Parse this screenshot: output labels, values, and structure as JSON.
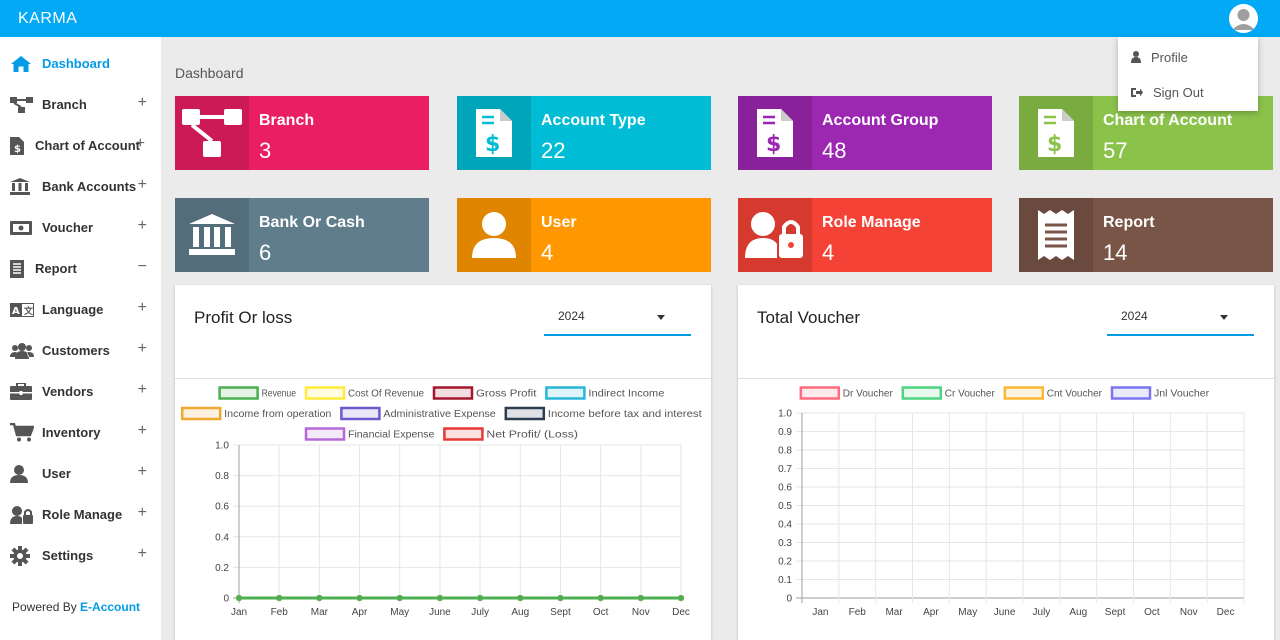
{
  "app": {
    "title": "KARMA"
  },
  "profile_menu": {
    "profile": "Profile",
    "sign_out": "Sign Out"
  },
  "sidebar": {
    "items": [
      {
        "label": "Dashboard",
        "icon": "home-icon",
        "state": ""
      },
      {
        "label": "Branch",
        "icon": "sitemap-icon",
        "state": "+"
      },
      {
        "label": "Chart of Account",
        "icon": "invoice-icon",
        "state": "+"
      },
      {
        "label": "Bank Accounts",
        "icon": "bank-icon",
        "state": "+"
      },
      {
        "label": "Voucher",
        "icon": "money-icon",
        "state": "+"
      },
      {
        "label": "Report",
        "icon": "report-icon",
        "state": "−"
      },
      {
        "label": "Language",
        "icon": "language-icon",
        "state": "+"
      },
      {
        "label": "Customers",
        "icon": "users-icon",
        "state": "+"
      },
      {
        "label": "Vendors",
        "icon": "briefcase-icon",
        "state": "+"
      },
      {
        "label": "Inventory",
        "icon": "cart-icon",
        "state": "+"
      },
      {
        "label": "User",
        "icon": "user-icon",
        "state": "+"
      },
      {
        "label": "Role Manage",
        "icon": "user-lock-icon",
        "state": "+"
      },
      {
        "label": "Settings",
        "icon": "gear-icon",
        "state": "+"
      }
    ],
    "powered_prefix": "Powered By",
    "powered_brand": "E-Account"
  },
  "breadcrumb": "Dashboard",
  "cards": [
    {
      "title": "Branch",
      "value": "3",
      "color": "#e91e63",
      "icon": "sitemap-icon"
    },
    {
      "title": "Account Type",
      "value": "22",
      "color": "#00bcd4",
      "icon": "invoice-icon"
    },
    {
      "title": "Account Group",
      "value": "48",
      "color": "#9c27b0",
      "icon": "invoice-icon"
    },
    {
      "title": "Chart of Account",
      "value": "57",
      "color": "#8bc34a",
      "icon": "invoice-icon"
    },
    {
      "title": "Bank Or Cash",
      "value": "6",
      "color": "#607d8b",
      "icon": "bank-icon"
    },
    {
      "title": "User",
      "value": "4",
      "color": "#ff9800",
      "icon": "user-icon"
    },
    {
      "title": "Role Manage",
      "value": "4",
      "color": "#f44336",
      "icon": "user-lock-icon"
    },
    {
      "title": "Report",
      "value": "14",
      "color": "#795548",
      "icon": "receipt-icon"
    }
  ],
  "panels": {
    "profit": {
      "title": "Profit Or loss",
      "year": "2024"
    },
    "voucher": {
      "title": "Total Voucher",
      "year": "2024"
    }
  },
  "chart_data": [
    {
      "type": "line",
      "title": "Profit Or loss",
      "categories": [
        "Jan",
        "Feb",
        "Mar",
        "Apr",
        "May",
        "June",
        "July",
        "Aug",
        "Sept",
        "Oct",
        "Nov",
        "Dec"
      ],
      "ylim": [
        0,
        1.0
      ],
      "yticks": [
        "0",
        "0.2",
        "0.4",
        "0.6",
        "0.8",
        "1.0"
      ],
      "legend_position": "top",
      "series": [
        {
          "name": "Revenue",
          "color": "#4caf50",
          "values": [
            0,
            0,
            0,
            0,
            0,
            0,
            0,
            0,
            0,
            0,
            0,
            0
          ]
        },
        {
          "name": "Cost Of Revenue",
          "color": "#ffeb3b",
          "values": [
            0,
            0,
            0,
            0,
            0,
            0,
            0,
            0,
            0,
            0,
            0,
            0
          ]
        },
        {
          "name": "Gross Profit",
          "color": "#a3172e",
          "values": [
            0,
            0,
            0,
            0,
            0,
            0,
            0,
            0,
            0,
            0,
            0,
            0
          ]
        },
        {
          "name": "Indirect Income",
          "color": "#29b6d8",
          "values": [
            0,
            0,
            0,
            0,
            0,
            0,
            0,
            0,
            0,
            0,
            0,
            0
          ]
        },
        {
          "name": "Income from operation",
          "color": "#f0a830",
          "values": [
            0,
            0,
            0,
            0,
            0,
            0,
            0,
            0,
            0,
            0,
            0,
            0
          ]
        },
        {
          "name": "Administrative Expense",
          "color": "#6a5acd",
          "values": [
            0,
            0,
            0,
            0,
            0,
            0,
            0,
            0,
            0,
            0,
            0,
            0
          ]
        },
        {
          "name": "Income before tax and interest",
          "color": "#2c3e50",
          "values": [
            0,
            0,
            0,
            0,
            0,
            0,
            0,
            0,
            0,
            0,
            0,
            0
          ]
        },
        {
          "name": "Financial Expense",
          "color": "#b36ad8",
          "values": [
            0,
            0,
            0,
            0,
            0,
            0,
            0,
            0,
            0,
            0,
            0,
            0
          ]
        },
        {
          "name": "Net Profit/ (Loss)",
          "color": "#e53935",
          "values": [
            0,
            0,
            0,
            0,
            0,
            0,
            0,
            0,
            0,
            0,
            0,
            0
          ]
        }
      ]
    },
    {
      "type": "bar",
      "title": "Total Voucher",
      "categories": [
        "Jan",
        "Feb",
        "Mar",
        "Apr",
        "May",
        "June",
        "July",
        "Aug",
        "Sept",
        "Oct",
        "Nov",
        "Dec"
      ],
      "ylim": [
        0,
        1.0
      ],
      "yticks": [
        "0",
        "0.1",
        "0.2",
        "0.3",
        "0.4",
        "0.5",
        "0.6",
        "0.7",
        "0.8",
        "0.9",
        "1.0"
      ],
      "legend_position": "top",
      "series": [
        {
          "name": "Dr Voucher",
          "color": "#ff6b7f",
          "values": [
            0,
            0,
            0,
            0,
            0,
            0,
            0,
            0,
            0,
            0,
            0,
            0
          ]
        },
        {
          "name": "Cr Voucher",
          "color": "#4ed47f",
          "values": [
            0,
            0,
            0,
            0,
            0,
            0,
            0,
            0,
            0,
            0,
            0,
            0
          ]
        },
        {
          "name": "Cnt Voucher",
          "color": "#ffb733",
          "values": [
            0,
            0,
            0,
            0,
            0,
            0,
            0,
            0,
            0,
            0,
            0,
            0
          ]
        },
        {
          "name": "Jnl Voucher",
          "color": "#7b74f0",
          "values": [
            0,
            0,
            0,
            0,
            0,
            0,
            0,
            0,
            0,
            0,
            0,
            0
          ]
        }
      ]
    }
  ]
}
